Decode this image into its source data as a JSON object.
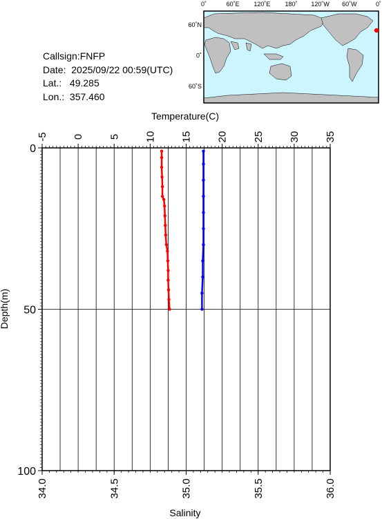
{
  "info": {
    "callsign": "Callsign:FNFP",
    "date": "Date:  2025/09/22 00:59(UTC)",
    "lat": "Lat.:   49.285",
    "lon": "Lon.:  357.460"
  },
  "map": {
    "top_ticks": [
      "0˚",
      "60˚E",
      "120˚E",
      "180˚",
      "120˚W",
      "60˚W",
      "0˚"
    ],
    "left_ticks": [
      "60˚N",
      "0˚",
      "60˚S"
    ],
    "ocean_color": "#ccf5ff",
    "land_color": "#c0c0c0",
    "marker": {
      "lat": 49.285,
      "lon": 357.46,
      "color": "#ff0000"
    }
  },
  "chart_data": {
    "type": "line",
    "top_axis_label": "Temperature(C)",
    "bottom_axis_label": "Salinity",
    "left_axis_label": "Depth(m)",
    "temperature_ticks": [
      "-5",
      "0",
      "5",
      "10",
      "15",
      "20",
      "25",
      "30",
      "35"
    ],
    "temperature_range": [
      -5,
      35
    ],
    "salinity_ticks": [
      "34.0",
      "34.5",
      "35.0",
      "35.5",
      "36.0"
    ],
    "salinity_range": [
      34.0,
      36.0
    ],
    "depth_ticks": [
      "0",
      "50",
      "100"
    ],
    "depth_range": [
      0,
      100
    ],
    "grid": true,
    "series": [
      {
        "axis": "temperature",
        "color": "#ff0000",
        "points": [
          {
            "depth": 1,
            "value": 11.6
          },
          {
            "depth": 3,
            "value": 11.6
          },
          {
            "depth": 6,
            "value": 11.6
          },
          {
            "depth": 9,
            "value": 11.65
          },
          {
            "depth": 12,
            "value": 11.7
          },
          {
            "depth": 15,
            "value": 11.7
          },
          {
            "depth": 16,
            "value": 11.9
          },
          {
            "depth": 18,
            "value": 12.0
          },
          {
            "depth": 21,
            "value": 12.05
          },
          {
            "depth": 24,
            "value": 12.1
          },
          {
            "depth": 27,
            "value": 12.15
          },
          {
            "depth": 30,
            "value": 12.25
          },
          {
            "depth": 32,
            "value": 12.4
          },
          {
            "depth": 35,
            "value": 12.45
          },
          {
            "depth": 38,
            "value": 12.5
          },
          {
            "depth": 41,
            "value": 12.5
          },
          {
            "depth": 44,
            "value": 12.55
          },
          {
            "depth": 47,
            "value": 12.6
          },
          {
            "depth": 50,
            "value": 12.7
          }
        ]
      },
      {
        "axis": "salinity",
        "color": "#0000ff",
        "points": [
          {
            "depth": 1,
            "value": 35.12
          },
          {
            "depth": 5,
            "value": 35.12
          },
          {
            "depth": 10,
            "value": 35.12
          },
          {
            "depth": 15,
            "value": 35.12
          },
          {
            "depth": 20,
            "value": 35.12
          },
          {
            "depth": 25,
            "value": 35.12
          },
          {
            "depth": 30,
            "value": 35.12
          },
          {
            "depth": 35,
            "value": 35.115
          },
          {
            "depth": 40,
            "value": 35.115
          },
          {
            "depth": 45,
            "value": 35.11
          },
          {
            "depth": 50,
            "value": 35.11
          }
        ]
      }
    ]
  }
}
